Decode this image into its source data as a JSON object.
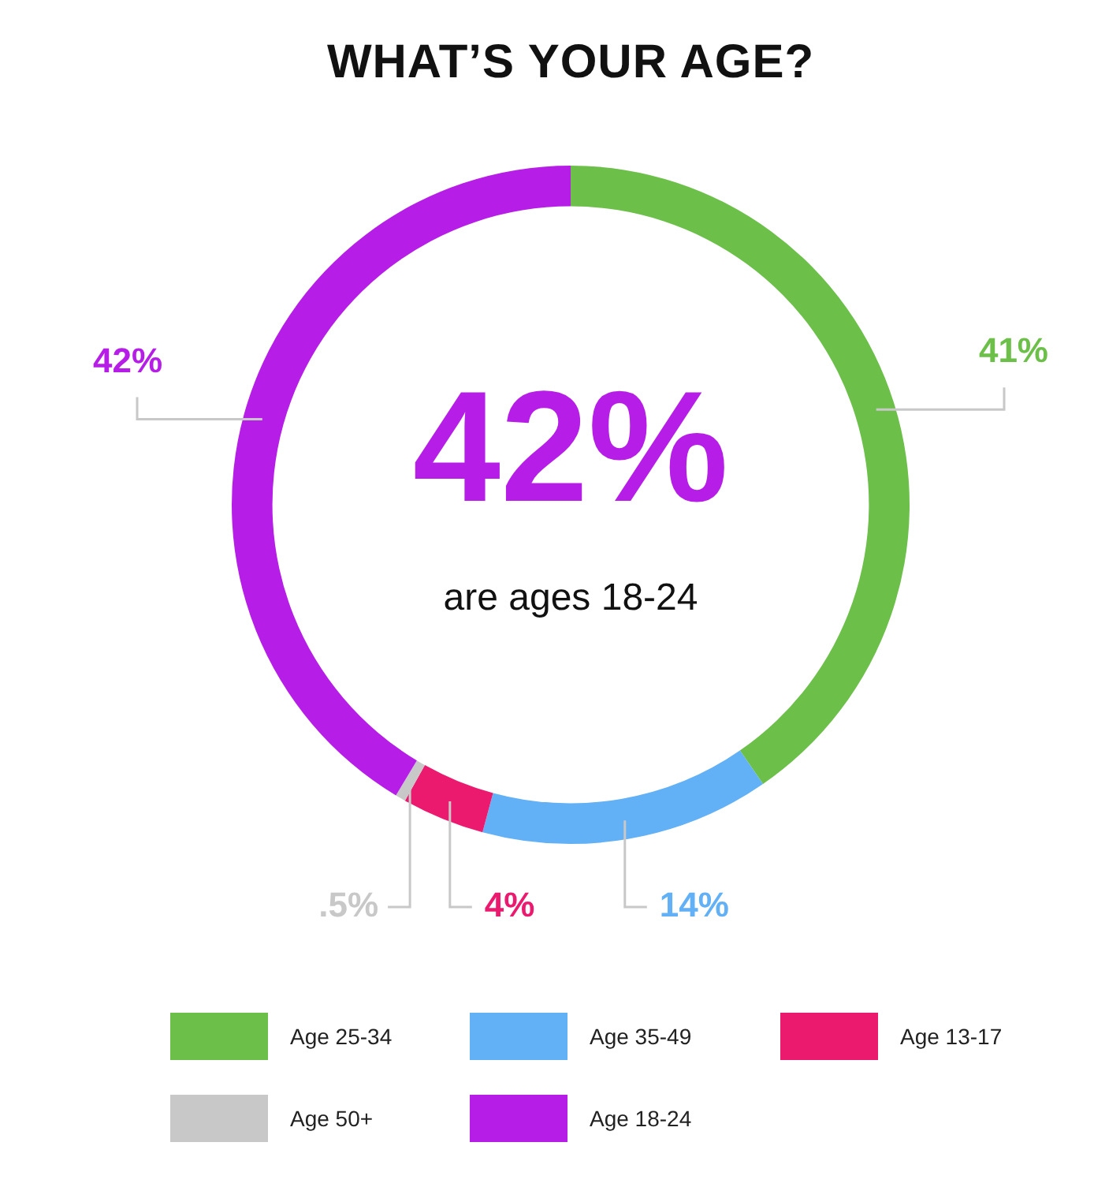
{
  "chart_data": {
    "type": "donut",
    "title": "WHAT’S YOUR AGE?",
    "categories": [
      "Age 25-34",
      "Age 35-49",
      "Age 13-17",
      "Age 50+",
      "Age 18-24"
    ],
    "values": [
      41,
      14,
      4,
      0.5,
      42
    ],
    "colors": [
      "#6cc04a",
      "#62b0f5",
      "#ec1a6f",
      "#c8c8c8",
      "#b61ee8"
    ],
    "value_labels": [
      "41%",
      "14%",
      "4%",
      ".5%",
      "42%"
    ],
    "annotations": [
      "42%",
      "are ages 18-24"
    ],
    "legend": "bottom"
  }
}
